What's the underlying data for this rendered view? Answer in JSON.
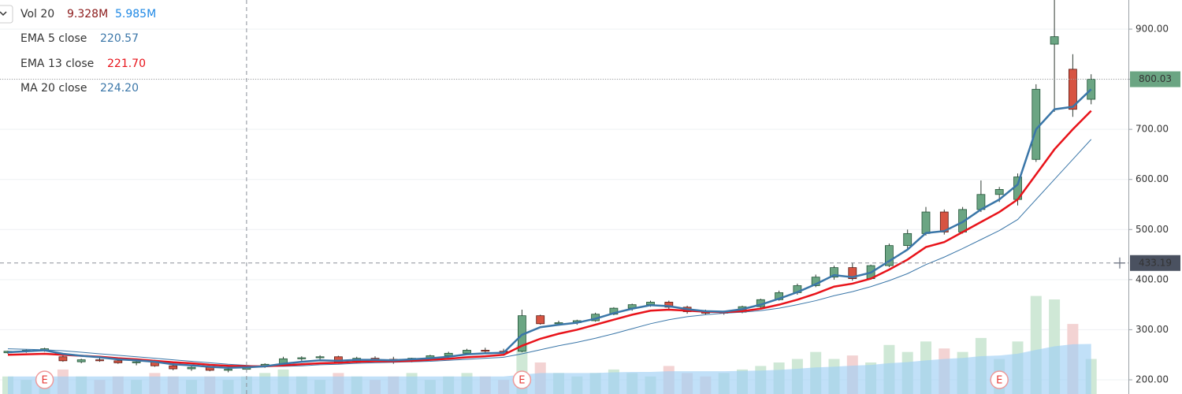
{
  "chart_data": {
    "type": "candlestick",
    "ylim": [
      171.7,
      958.2
    ],
    "yticks": [
      {
        "value": 200,
        "label": "200.00"
      },
      {
        "value": 300,
        "label": "300.00"
      },
      {
        "value": 400,
        "label": "400.00"
      },
      {
        "value": 500,
        "label": "500.00"
      },
      {
        "value": 600,
        "label": "600.00"
      },
      {
        "value": 700,
        "label": "700.00"
      },
      {
        "value": 800,
        "label": "800.00"
      },
      {
        "value": 900,
        "label": "900.00"
      }
    ],
    "grid": true,
    "up_color": "#6ba583",
    "down_color": "#d75442",
    "wick_color": "#2f3b33",
    "open": [
      254,
      257,
      258,
      246,
      236,
      240,
      238,
      234,
      236,
      228,
      222,
      225,
      219,
      221,
      227,
      231,
      242,
      244,
      246,
      235,
      243,
      241,
      238,
      243,
      248,
      253,
      259,
      257,
      257,
      328,
      312,
      314,
      318,
      331,
      343,
      350,
      355,
      345,
      336,
      333,
      335,
      346,
      360,
      374,
      388,
      405,
      424,
      402,
      428,
      468,
      492,
      535,
      495,
      540,
      570,
      560,
      640,
      870,
      820,
      760
    ],
    "high": [
      258,
      261,
      264,
      248,
      242,
      245,
      241,
      238,
      240,
      232,
      228,
      228,
      224,
      229,
      233,
      246,
      247,
      249,
      248,
      246,
      247,
      246,
      244,
      250,
      256,
      262,
      264,
      262,
      340,
      330,
      318,
      320,
      334,
      345,
      352,
      358,
      358,
      348,
      340,
      338,
      348,
      362,
      378,
      392,
      410,
      428,
      434,
      430,
      472,
      500,
      545,
      540,
      545,
      598,
      585,
      612,
      790,
      970,
      850,
      810
    ],
    "low": [
      252,
      254,
      256,
      236,
      233,
      236,
      232,
      229,
      226,
      219,
      218,
      217,
      215,
      219,
      224,
      229,
      238,
      240,
      232,
      233,
      238,
      232,
      235,
      240,
      245,
      250,
      254,
      252,
      255,
      310,
      308,
      310,
      316,
      329,
      338,
      346,
      340,
      332,
      330,
      330,
      333,
      344,
      358,
      370,
      385,
      400,
      398,
      400,
      425,
      460,
      488,
      490,
      492,
      535,
      555,
      548,
      635,
      735,
      725,
      750
    ],
    "close": [
      257,
      259,
      262,
      238,
      240,
      238,
      234,
      236,
      228,
      222,
      225,
      219,
      221,
      227,
      231,
      242,
      244,
      246,
      235,
      243,
      241,
      238,
      243,
      248,
      253,
      259,
      257,
      255,
      328,
      312,
      314,
      318,
      331,
      343,
      350,
      355,
      345,
      336,
      333,
      335,
      346,
      360,
      374,
      388,
      405,
      424,
      402,
      428,
      468,
      492,
      535,
      495,
      540,
      570,
      580,
      605,
      780,
      885,
      740,
      800
    ],
    "series": [
      {
        "name": "EMA 5 close",
        "color": "#3a76a8",
        "width": 2.5,
        "legend_value": 220.57,
        "values": [
          255,
          257,
          259,
          252,
          248,
          245,
          241,
          239,
          236,
          231,
          229,
          226,
          224,
          225,
          227,
          232,
          236,
          239,
          238,
          240,
          240,
          239,
          241,
          243,
          246,
          251,
          253,
          254,
          290,
          305,
          310,
          314,
          322,
          333,
          342,
          349,
          347,
          341,
          337,
          336,
          341,
          350,
          362,
          375,
          391,
          409,
          405,
          414,
          437,
          460,
          493,
          497,
          515,
          540,
          560,
          590,
          700,
          740,
          745,
          780
        ]
      },
      {
        "name": "EMA 13 close",
        "color": "#e8131a",
        "width": 2.5,
        "legend_value": {
          "value": 221.7,
          "label": "221.70"
        },
        "values": [
          250,
          251,
          252,
          250,
          248,
          246,
          243,
          241,
          238,
          235,
          233,
          230,
          228,
          227,
          227,
          229,
          231,
          233,
          234,
          236,
          237,
          237,
          238,
          240,
          242,
          245,
          247,
          250,
          268,
          282,
          292,
          300,
          310,
          320,
          330,
          338,
          340,
          338,
          336,
          335,
          337,
          342,
          350,
          360,
          372,
          386,
          392,
          402,
          420,
          440,
          465,
          475,
          495,
          515,
          535,
          560,
          610,
          660,
          700,
          737
        ]
      },
      {
        "name": "MA 20 close",
        "color": "#3a76a8",
        "width": 1,
        "legend_value": {
          "value": 224.2,
          "label": "224.20"
        },
        "values": [
          262,
          261,
          260,
          258,
          255,
          252,
          249,
          246,
          243,
          240,
          237,
          234,
          231,
          229,
          227,
          227,
          228,
          230,
          231,
          233,
          234,
          235,
          236,
          237,
          239,
          241,
          243,
          245,
          252,
          260,
          268,
          275,
          283,
          292,
          302,
          312,
          320,
          326,
          330,
          333,
          335,
          338,
          343,
          350,
          358,
          368,
          376,
          386,
          398,
          412,
          430,
          445,
          462,
          480,
          498,
          520,
          560,
          600,
          640,
          680
        ]
      }
    ],
    "volume": {
      "name": "Vol 20",
      "ylim": [
        0,
        36
      ],
      "legend_values": [
        {
          "value": 9.328,
          "label": "9.328M",
          "color": "#8b1a1a"
        },
        {
          "value": 5.985,
          "label": "5.985M",
          "color": "#1e88e5"
        }
      ],
      "up_color": "#cfe8d6",
      "down_color": "#f3d3d3",
      "ma_color": "#9fd0f5",
      "values": [
        5,
        4,
        6,
        7,
        5,
        4,
        5,
        4,
        6,
        5,
        4,
        5,
        4,
        5,
        6,
        7,
        5,
        4,
        6,
        5,
        4,
        5,
        6,
        4,
        5,
        6,
        5,
        4,
        14,
        9,
        6,
        5,
        6,
        7,
        6,
        5,
        8,
        6,
        5,
        6,
        7,
        8,
        9,
        10,
        12,
        10,
        11,
        9,
        14,
        12,
        15,
        13,
        12,
        16,
        10,
        15,
        28,
        27,
        20,
        10
      ],
      "ma_values": [
        5,
        5,
        5,
        5,
        5,
        5,
        5,
        5,
        5,
        5,
        5,
        5,
        5,
        5,
        5,
        5,
        5,
        5,
        5,
        5,
        5,
        5,
        5,
        5,
        5,
        5,
        5,
        5,
        5.5,
        6,
        6,
        6,
        6,
        6.2,
        6.3,
        6.3,
        6.5,
        6.5,
        6.5,
        6.5,
        6.6,
        6.7,
        6.9,
        7.2,
        7.6,
        7.8,
        8.1,
        8.3,
        8.8,
        9.1,
        9.6,
        10,
        10.3,
        10.8,
        11,
        11.5,
        12.6,
        13.6,
        14.2,
        14.3
      ]
    },
    "earnings": [
      {
        "index": 2,
        "label": "E"
      },
      {
        "index": 28,
        "label": "E"
      },
      {
        "index": 54,
        "label": "E"
      }
    ],
    "last_price": {
      "value": 800.03,
      "color": "#6ba583"
    },
    "crosshair": {
      "index": 13,
      "price": 433.19
    }
  }
}
